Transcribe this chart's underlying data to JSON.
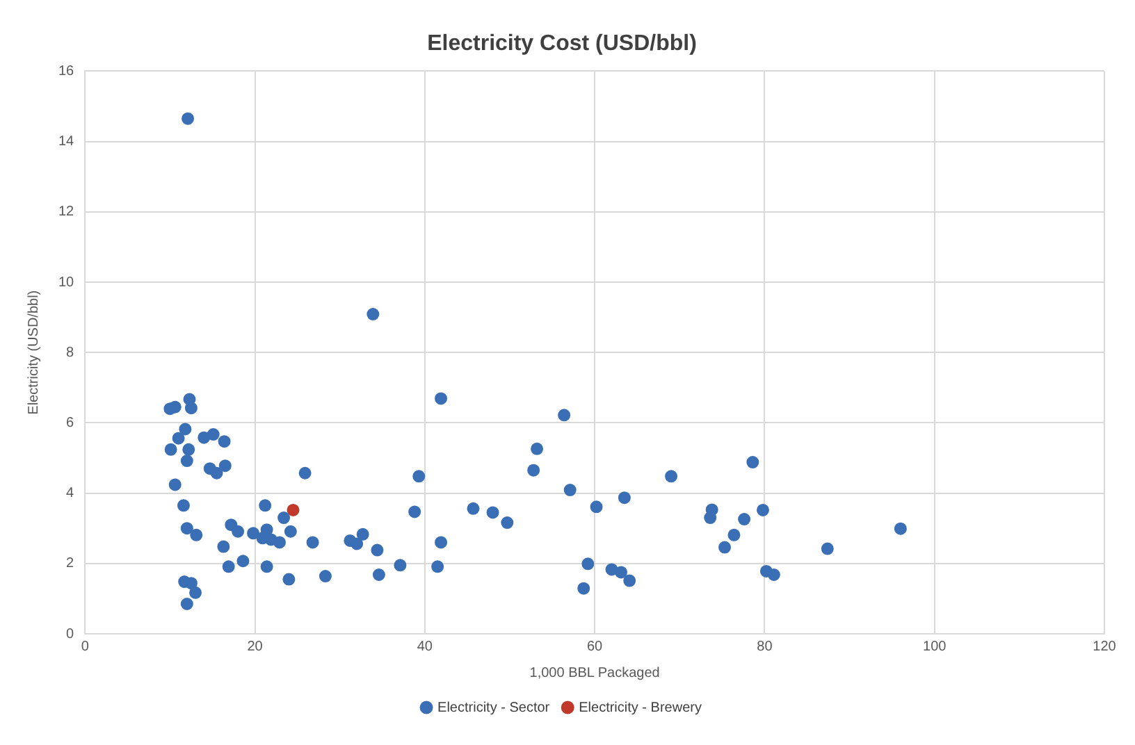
{
  "chart_data": {
    "type": "scatter",
    "title": "Electricity Cost (USD/bbl)",
    "xlabel": "1,000 BBL Packaged",
    "ylabel": "Electricity (USD/bbl)",
    "xlim": [
      0,
      120
    ],
    "xticks": [
      0,
      20,
      40,
      60,
      80,
      100,
      120
    ],
    "ylim": [
      0,
      16
    ],
    "yticks": [
      0,
      2,
      4,
      6,
      8,
      10,
      12,
      14,
      16
    ],
    "grid": true,
    "legend": "bottom",
    "marker": "circle",
    "series": [
      {
        "name": "Electricity - Sector",
        "color": "#3a6fb5",
        "x": [
          12.1,
          33.9,
          10.0,
          10.6,
          12.3,
          12.5,
          11.8,
          11.0,
          10.1,
          12.2,
          12.0,
          14.0,
          15.1,
          16.4,
          14.7,
          15.5,
          16.5,
          10.6,
          11.6,
          12.0,
          13.1,
          17.2,
          18.0,
          16.3,
          16.9,
          18.6,
          19.8,
          20.9,
          21.4,
          21.9,
          22.9,
          21.2,
          23.4,
          24.2,
          25.9,
          26.8,
          21.4,
          24.0,
          28.3,
          11.7,
          12.5,
          13.0,
          12.0,
          31.2,
          32.0,
          32.7,
          34.4,
          34.6,
          37.1,
          38.8,
          39.3,
          41.9,
          41.9,
          41.5,
          45.7,
          48.0,
          49.7,
          52.8,
          53.2,
          56.4,
          57.1,
          60.2,
          59.2,
          58.7,
          62.0,
          63.1,
          64.1,
          63.5,
          69.0,
          73.8,
          73.6,
          77.6,
          76.4,
          75.3,
          78.6,
          79.8,
          80.2,
          81.1,
          87.4,
          96.0
        ],
        "values": [
          14.65,
          9.09,
          6.4,
          6.45,
          6.67,
          6.42,
          5.82,
          5.56,
          5.24,
          5.24,
          4.92,
          5.58,
          5.67,
          5.47,
          4.7,
          4.57,
          4.78,
          4.24,
          3.65,
          3.0,
          2.81,
          3.1,
          2.91,
          2.48,
          1.91,
          2.07,
          2.86,
          2.72,
          2.96,
          2.68,
          2.6,
          3.65,
          3.3,
          2.91,
          4.57,
          2.6,
          1.91,
          1.55,
          1.64,
          1.48,
          1.44,
          1.17,
          0.85,
          2.65,
          2.56,
          2.83,
          2.38,
          1.68,
          1.95,
          3.47,
          4.48,
          6.69,
          2.6,
          1.91,
          3.56,
          3.45,
          3.16,
          4.65,
          5.26,
          6.22,
          4.09,
          3.61,
          1.99,
          1.29,
          1.83,
          1.75,
          1.51,
          3.87,
          4.48,
          3.53,
          3.3,
          3.26,
          2.81,
          2.46,
          4.88,
          3.52,
          1.78,
          1.68,
          2.42,
          2.99
        ]
      },
      {
        "name": "Electricity - Brewery",
        "color": "#c0392b",
        "x": [
          24.5
        ],
        "values": [
          3.52
        ]
      }
    ]
  }
}
